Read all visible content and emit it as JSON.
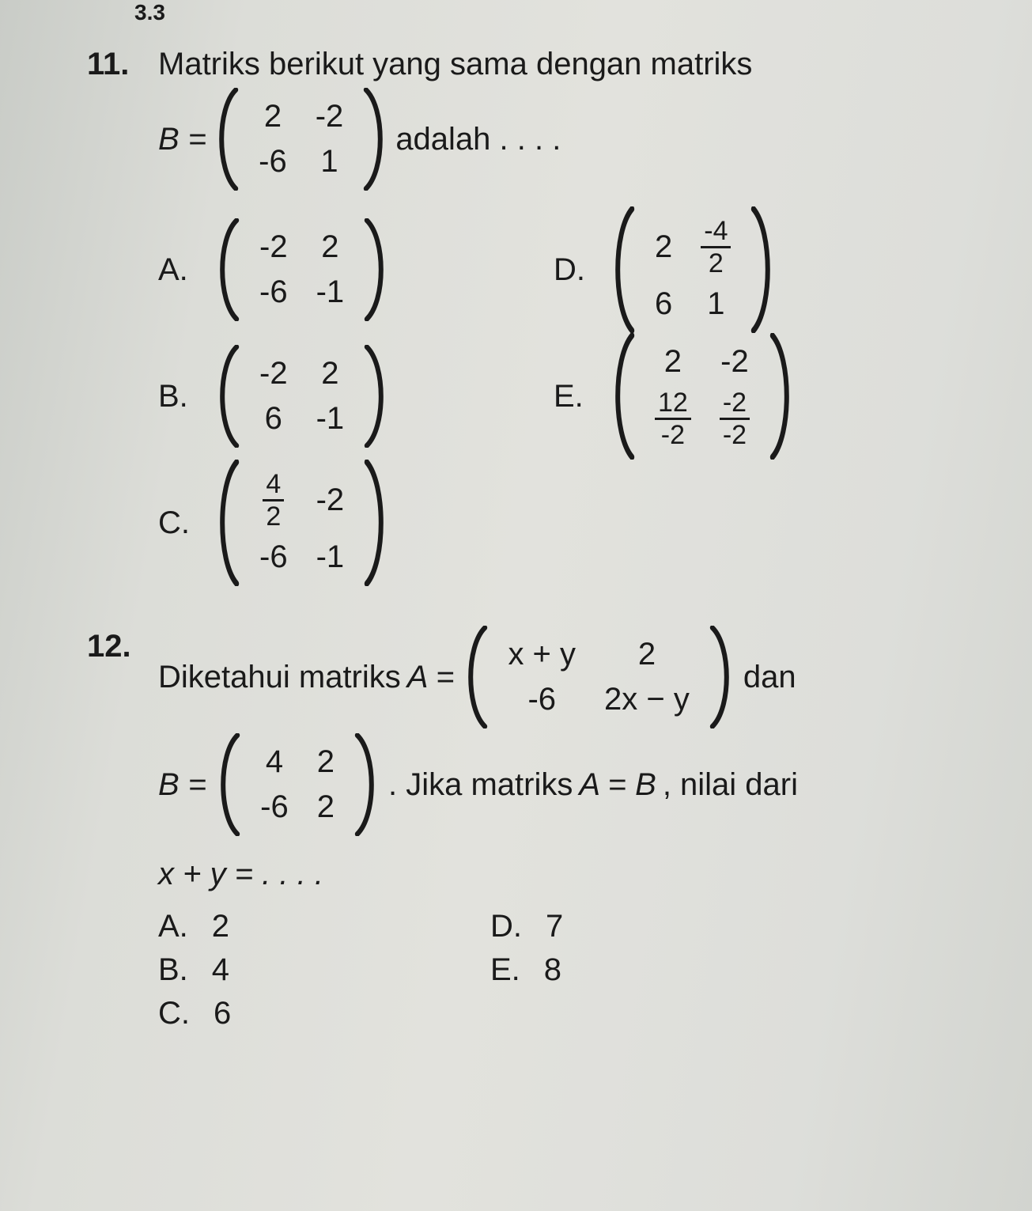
{
  "fragment_top": "3.3",
  "q11": {
    "num": "11.",
    "lead": "Matriks berikut yang sama dengan matriks",
    "B_eq": "B =",
    "B_matrix": [
      [
        "2",
        "-2"
      ],
      [
        "-6",
        "1"
      ]
    ],
    "tail": "adalah . . . .",
    "options": {
      "A": {
        "letter": "A.",
        "m": [
          [
            "-2",
            "2"
          ],
          [
            "-6",
            "-1"
          ]
        ]
      },
      "B": {
        "letter": "B.",
        "m": [
          [
            "-2",
            "2"
          ],
          [
            "6",
            "-1"
          ]
        ]
      },
      "C": {
        "letter": "C.",
        "m": [
          [
            {
              "frac": [
                "4",
                "2"
              ]
            },
            "-2"
          ],
          [
            "-6",
            "-1"
          ]
        ]
      },
      "D": {
        "letter": "D.",
        "m": [
          [
            "2",
            {
              "frac": [
                "-4",
                "2"
              ]
            }
          ],
          [
            "6",
            "1"
          ]
        ]
      },
      "E": {
        "letter": "E.",
        "m": [
          [
            "2",
            "-2"
          ],
          [
            {
              "frac": [
                "12",
                "-2"
              ]
            },
            {
              "frac": [
                "-2",
                "-2"
              ]
            }
          ]
        ]
      }
    }
  },
  "q12": {
    "num": "12.",
    "t1": "Diketahui matriks ",
    "A_eq": "A =",
    "A_matrix": [
      [
        "x + y",
        "2"
      ],
      [
        "-6",
        "2x − y"
      ]
    ],
    "dan": "dan",
    "B_eq": "B =",
    "B_matrix": [
      [
        "4",
        "2"
      ],
      [
        "-6",
        "2"
      ]
    ],
    "t2": ". Jika matriks ",
    "t3": "A = B",
    "t4": ", nilai dari",
    "expr": "x + y = . . . .",
    "options": {
      "A": {
        "l": "A.",
        "v": "2"
      },
      "B": {
        "l": "B.",
        "v": "4"
      },
      "C": {
        "l": "C.",
        "v": "6"
      },
      "D": {
        "l": "D.",
        "v": "7"
      },
      "E": {
        "l": "E.",
        "v": "8"
      }
    }
  },
  "colors": {
    "text": "#1a1a1a",
    "background": "#dcddd8"
  }
}
